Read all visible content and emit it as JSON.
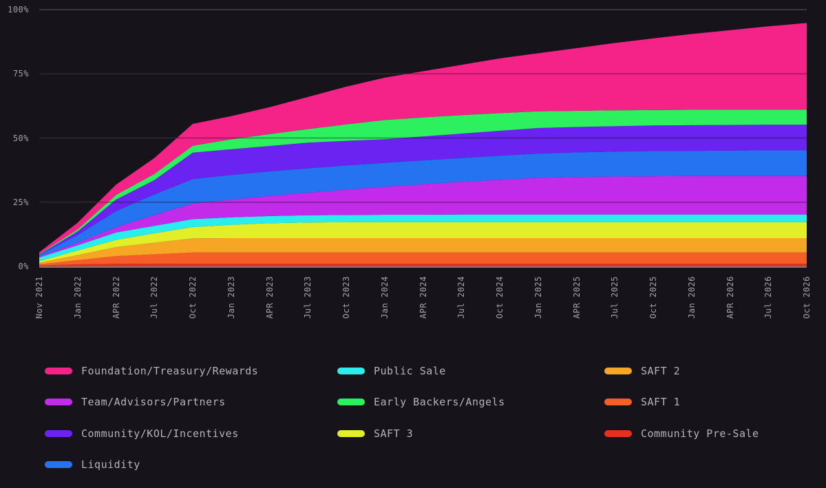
{
  "page": {
    "background": "#17131A",
    "grid_line_color": "#5C5A61",
    "grid_overlay_color": "rgba(18,10,22,0.42)",
    "axis_baseline_color": "#9B9AA0",
    "axis_text_color": "#A3A2A8",
    "legend_text_color": "#B5B4B9"
  },
  "chart_data": {
    "type": "area",
    "stacked": true,
    "title": "",
    "xlabel": "",
    "ylabel": "",
    "ylim": [
      0,
      100
    ],
    "grid": "horizontal",
    "legend_position": "bottom",
    "y_ticks": [
      "0%",
      "25%",
      "50%",
      "75%",
      "100%"
    ],
    "categories": [
      "Nov 2021",
      "Jan 2022",
      "APR 2022",
      "Jul 2022",
      "Oct 2022",
      "Jan 2023",
      "APR 2023",
      "Jul 2023",
      "Oct 2023",
      "Jan 2024",
      "APR 2024",
      "Jul 2024",
      "Oct 2024",
      "Jan 2025",
      "APR 2025",
      "Jul 2025",
      "Oct 2025",
      "Jan 2026",
      "APR 2026",
      "Jul 2026",
      "Oct 2026"
    ],
    "units": "% of supply unlocked (cumulative, stacked)",
    "stack_order_note": "series listed bottom-to-top of the stack",
    "series": [
      {
        "name": "Community Pre-Sale",
        "color": "#E82E1E",
        "values": [
          0.3,
          0.8,
          1,
          1,
          1,
          1,
          1,
          1,
          1,
          1,
          1,
          1,
          1,
          1,
          1,
          1,
          1,
          1,
          1,
          1,
          1
        ]
      },
      {
        "name": "SAFT 1",
        "color": "#F55F27",
        "values": [
          0.5,
          1.6,
          3,
          3.7,
          4.4,
          4.4,
          4.4,
          4.4,
          4.4,
          4.4,
          4.4,
          4.4,
          4.4,
          4.4,
          4.4,
          4.4,
          4.4,
          4.4,
          4.4,
          4.4,
          4.4
        ]
      },
      {
        "name": "SAFT 2",
        "color": "#F6A525",
        "values": [
          0.6,
          2,
          3.5,
          4.5,
          5.5,
          5.6,
          5.6,
          5.6,
          5.6,
          5.6,
          5.6,
          5.6,
          5.6,
          5.6,
          5.6,
          5.6,
          5.6,
          5.6,
          5.6,
          5.6,
          5.6
        ]
      },
      {
        "name": "SAFT 3",
        "color": "#E2EF28",
        "values": [
          0.6,
          1.8,
          2.8,
          3.7,
          4.4,
          5.2,
          5.8,
          6.1,
          6.2,
          6.2,
          6.2,
          6.2,
          6.2,
          6.2,
          6.2,
          6.2,
          6.2,
          6.2,
          6.2,
          6.2,
          6.2
        ]
      },
      {
        "name": "Public Sale",
        "color": "#2BEDEE",
        "values": [
          1.5,
          2,
          2.9,
          2.9,
          3.1,
          2.9,
          2.8,
          2.8,
          2.8,
          2.9,
          2.9,
          3,
          3,
          3,
          3,
          3,
          3,
          3,
          3,
          3,
          3
        ]
      },
      {
        "name": "Team/Advisors/Partners",
        "color": "#C32BEB",
        "values": [
          0.3,
          1,
          2,
          4.2,
          6.1,
          6.9,
          7.8,
          8.8,
          9.9,
          10.9,
          11.9,
          12.7,
          13.5,
          14.3,
          14.6,
          14.8,
          14.9,
          15,
          15,
          15,
          15
        ]
      },
      {
        "name": "Liquidity",
        "color": "#2573F0",
        "values": [
          0.6,
          3,
          6.3,
          8,
          9.5,
          9.6,
          9.6,
          9.5,
          9.4,
          9.3,
          9.3,
          9.3,
          9.4,
          9.4,
          9.6,
          9.7,
          9.8,
          9.8,
          9.9,
          10,
          10
        ]
      },
      {
        "name": "Community/KOL/Incentives",
        "color": "#6B23F2",
        "values": [
          0.2,
          1.4,
          4.5,
          5.6,
          10.3,
          10,
          9.9,
          10,
          9.6,
          9.2,
          9.3,
          9.5,
          9.7,
          10,
          9.9,
          9.9,
          10,
          10,
          10,
          10,
          10
        ]
      },
      {
        "name": "Early Backers/Angels",
        "color": "#2CF05E",
        "values": [
          0.2,
          0.8,
          1.8,
          2.4,
          2.7,
          3.9,
          4.6,
          5.3,
          6.4,
          7.5,
          7.4,
          7.2,
          6.9,
          6.5,
          6.3,
          6.2,
          6,
          6,
          5.9,
          5.8,
          5.8
        ]
      },
      {
        "name": "Foundation/Treasury/Rewards",
        "color": "#F52388",
        "values": [
          0.7,
          2.6,
          4,
          6.2,
          8.5,
          9,
          10.5,
          12.5,
          14.7,
          16.5,
          18,
          19.6,
          21.3,
          22.6,
          24.4,
          26.2,
          27.9,
          29.5,
          31,
          32.5,
          33.8
        ]
      }
    ]
  },
  "legend": {
    "columns": [
      [
        "Foundation/Treasury/Rewards",
        "Team/Advisors/Partners",
        "Community/KOL/Incentives",
        "Liquidity"
      ],
      [
        "Public Sale",
        "Early Backers/Angels",
        "SAFT 3"
      ],
      [
        "SAFT 2",
        "SAFT 1",
        "Community Pre-Sale"
      ]
    ]
  }
}
